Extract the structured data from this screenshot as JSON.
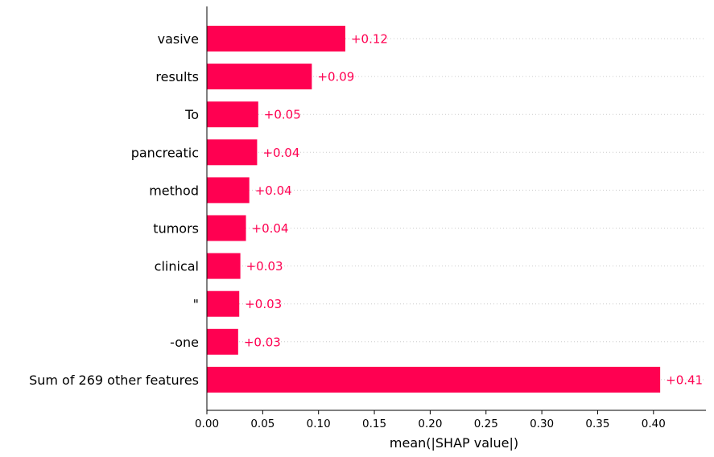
{
  "chart_data": {
    "type": "bar",
    "orientation": "horizontal",
    "categories": [
      "vasive",
      "results",
      "To",
      "pancreatic",
      "method",
      "tumors",
      "clinical",
      "\"",
      "-one",
      "Sum of 269 other features"
    ],
    "values": [
      0.124,
      0.094,
      0.046,
      0.045,
      0.038,
      0.035,
      0.03,
      0.029,
      0.028,
      0.406
    ],
    "value_labels": [
      "+0.12",
      "+0.09",
      "+0.05",
      "+0.04",
      "+0.04",
      "+0.04",
      "+0.03",
      "+0.03",
      "+0.03",
      "+0.41"
    ],
    "xlabel": "mean(|SHAP value|)",
    "ylabel": "",
    "xlim": [
      0,
      0.447
    ],
    "xticks": [
      0,
      0.05,
      0.1,
      0.15,
      0.2,
      0.25,
      0.3,
      0.35,
      0.4
    ],
    "xtick_labels": [
      "0.00",
      "0.05",
      "0.10",
      "0.15",
      "0.20",
      "0.25",
      "0.30",
      "0.35",
      "0.40"
    ],
    "grid": "horizontal dotted",
    "colors": {
      "bar": "#ff0051",
      "value_label": "#ff0051",
      "grid": "#cccccc",
      "axis": "#000000"
    }
  }
}
